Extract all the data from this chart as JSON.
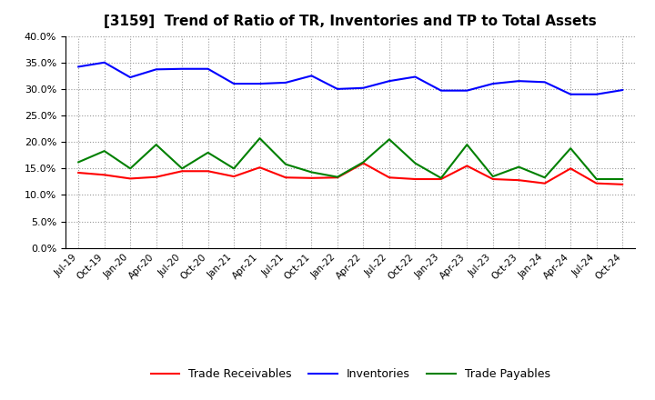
{
  "title": "[3159]  Trend of Ratio of TR, Inventories and TP to Total Assets",
  "x_labels": [
    "Jul-19",
    "Oct-19",
    "Jan-20",
    "Apr-20",
    "Jul-20",
    "Oct-20",
    "Jan-21",
    "Apr-21",
    "Jul-21",
    "Oct-21",
    "Jan-22",
    "Apr-22",
    "Jul-22",
    "Oct-22",
    "Jan-23",
    "Apr-23",
    "Jul-23",
    "Oct-23",
    "Jan-24",
    "Apr-24",
    "Jul-24",
    "Oct-24"
  ],
  "trade_receivables": [
    0.142,
    0.138,
    0.131,
    0.134,
    0.145,
    0.145,
    0.135,
    0.152,
    0.133,
    0.132,
    0.133,
    0.16,
    0.133,
    0.13,
    0.13,
    0.155,
    0.13,
    0.128,
    0.122,
    0.15,
    0.122,
    0.12
  ],
  "inventories": [
    0.342,
    0.35,
    0.322,
    0.337,
    0.338,
    0.338,
    0.31,
    0.31,
    0.312,
    0.325,
    0.3,
    0.302,
    0.315,
    0.323,
    0.297,
    0.297,
    0.31,
    0.315,
    0.313,
    0.29,
    0.29,
    0.298
  ],
  "trade_payables": [
    0.162,
    0.183,
    0.15,
    0.195,
    0.15,
    0.18,
    0.15,
    0.207,
    0.158,
    0.143,
    0.134,
    0.162,
    0.205,
    0.16,
    0.132,
    0.195,
    0.135,
    0.153,
    0.133,
    0.188,
    0.13,
    0.13
  ],
  "tr_color": "#ff0000",
  "inv_color": "#0000ff",
  "tp_color": "#008000",
  "ylim": [
    0.0,
    0.4
  ],
  "yticks": [
    0.0,
    0.05,
    0.1,
    0.15,
    0.2,
    0.25,
    0.3,
    0.35,
    0.4
  ],
  "legend_labels": [
    "Trade Receivables",
    "Inventories",
    "Trade Payables"
  ],
  "background_color": "#ffffff",
  "grid_color": "#aaaaaa"
}
